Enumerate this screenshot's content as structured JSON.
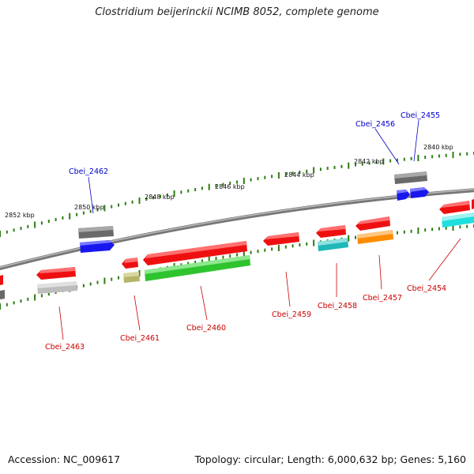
{
  "title": "Clostridium beijerinckii NCIMB 8052, complete genome",
  "footer": {
    "accession": "Accession: NC_009617",
    "summary": "Topology: circular; Length: 6,000,632 bp; Genes: 5,160"
  },
  "colors": {
    "backbone": "#8a8a8a",
    "tick": "#2e7d12",
    "forward_label": "#0000c8",
    "reverse_label": "#c80000",
    "red": "#ff1a1a",
    "blue": "#1a1aff",
    "gray": "#6e6e6e",
    "lightgray": "#bdbdbd",
    "green": "#33cc33",
    "olive": "#bdbd6e",
    "teal": "#22c4c4",
    "cyan": "#22e6e6",
    "orange": "#ff9a1a"
  },
  "scale_labels": [
    "2852 kbp",
    "2850 kbp",
    "2848 kbp",
    "2846 kbp",
    "2844 kbp",
    "2842 kbp",
    "2840 kbp"
  ],
  "gene_labels": {
    "forward": [
      "Cbei_2462",
      "Cbei_2456",
      "Cbei_2455"
    ],
    "reverse": [
      "Cbei_2463",
      "Cbei_2461",
      "Cbei_2460",
      "Cbei_2459",
      "Cbei_2458",
      "Cbei_2457",
      "Cbei_2454"
    ]
  }
}
